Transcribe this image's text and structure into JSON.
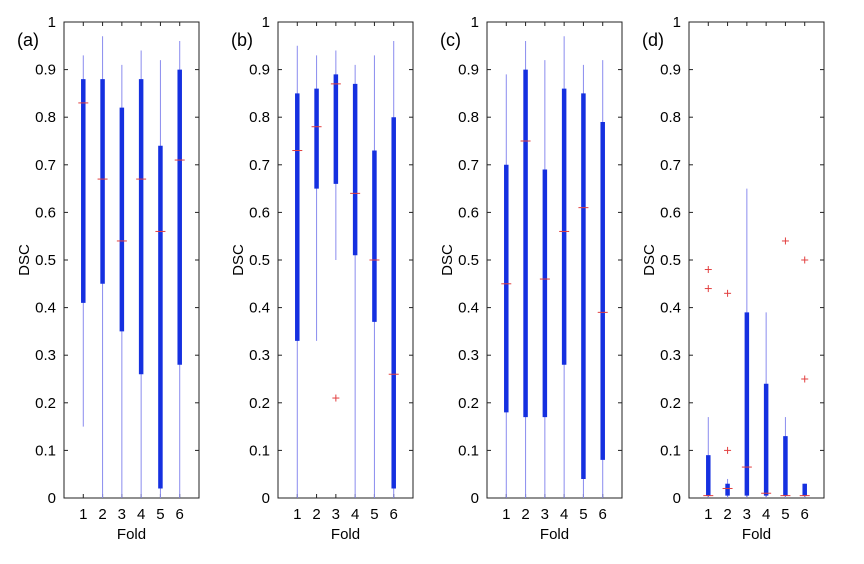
{
  "chart_data": [
    {
      "type": "boxplot",
      "panel_label": "(a)",
      "xlabel": "Fold",
      "ylabel": "DSC",
      "ylim": [
        0,
        1
      ],
      "yticks": [
        0,
        0.1,
        0.2,
        0.3,
        0.4,
        0.5,
        0.6,
        0.7,
        0.8,
        0.9,
        1
      ],
      "categories": [
        "1",
        "2",
        "3",
        "4",
        "5",
        "6"
      ],
      "boxes": [
        {
          "fold": "1",
          "whisker_low": 0.15,
          "q1": 0.41,
          "median": 0.83,
          "q3": 0.88,
          "whisker_high": 0.93,
          "outliers": []
        },
        {
          "fold": "2",
          "whisker_low": 0.0,
          "q1": 0.45,
          "median": 0.67,
          "q3": 0.88,
          "whisker_high": 0.97,
          "outliers": []
        },
        {
          "fold": "3",
          "whisker_low": 0.0,
          "q1": 0.35,
          "median": 0.54,
          "q3": 0.82,
          "whisker_high": 0.91,
          "outliers": []
        },
        {
          "fold": "4",
          "whisker_low": 0.0,
          "q1": 0.26,
          "median": 0.67,
          "q3": 0.88,
          "whisker_high": 0.94,
          "outliers": []
        },
        {
          "fold": "5",
          "whisker_low": 0.0,
          "q1": 0.02,
          "median": 0.56,
          "q3": 0.74,
          "whisker_high": 0.92,
          "outliers": []
        },
        {
          "fold": "6",
          "whisker_low": 0.0,
          "q1": 0.28,
          "median": 0.71,
          "q3": 0.9,
          "whisker_high": 0.96,
          "outliers": []
        }
      ]
    },
    {
      "type": "boxplot",
      "panel_label": "(b)",
      "xlabel": "Fold",
      "ylabel": "DSC",
      "ylim": [
        0,
        1
      ],
      "yticks": [
        0,
        0.1,
        0.2,
        0.3,
        0.4,
        0.5,
        0.6,
        0.7,
        0.8,
        0.9,
        1
      ],
      "categories": [
        "1",
        "2",
        "3",
        "4",
        "5",
        "6"
      ],
      "boxes": [
        {
          "fold": "1",
          "whisker_low": 0.0,
          "q1": 0.33,
          "median": 0.73,
          "q3": 0.85,
          "whisker_high": 0.95,
          "outliers": []
        },
        {
          "fold": "2",
          "whisker_low": 0.33,
          "q1": 0.65,
          "median": 0.78,
          "q3": 0.86,
          "whisker_high": 0.93,
          "outliers": []
        },
        {
          "fold": "3",
          "whisker_low": 0.5,
          "q1": 0.66,
          "median": 0.87,
          "q3": 0.89,
          "whisker_high": 0.94,
          "outliers": [
            0.21
          ]
        },
        {
          "fold": "4",
          "whisker_low": 0.0,
          "q1": 0.51,
          "median": 0.64,
          "q3": 0.87,
          "whisker_high": 0.91,
          "outliers": []
        },
        {
          "fold": "5",
          "whisker_low": 0.0,
          "q1": 0.37,
          "median": 0.5,
          "q3": 0.73,
          "whisker_high": 0.93,
          "outliers": []
        },
        {
          "fold": "6",
          "whisker_low": 0.0,
          "q1": 0.02,
          "median": 0.26,
          "q3": 0.8,
          "whisker_high": 0.96,
          "outliers": []
        }
      ]
    },
    {
      "type": "boxplot",
      "panel_label": "(c)",
      "xlabel": "Fold",
      "ylabel": "DSC",
      "ylim": [
        0,
        1
      ],
      "yticks": [
        0,
        0.1,
        0.2,
        0.3,
        0.4,
        0.5,
        0.6,
        0.7,
        0.8,
        0.9,
        1
      ],
      "categories": [
        "1",
        "2",
        "3",
        "4",
        "5",
        "6"
      ],
      "boxes": [
        {
          "fold": "1",
          "whisker_low": 0.0,
          "q1": 0.18,
          "median": 0.45,
          "q3": 0.7,
          "whisker_high": 0.89,
          "outliers": []
        },
        {
          "fold": "2",
          "whisker_low": 0.0,
          "q1": 0.17,
          "median": 0.75,
          "q3": 0.9,
          "whisker_high": 0.96,
          "outliers": []
        },
        {
          "fold": "3",
          "whisker_low": 0.0,
          "q1": 0.17,
          "median": 0.46,
          "q3": 0.69,
          "whisker_high": 0.92,
          "outliers": []
        },
        {
          "fold": "4",
          "whisker_low": 0.0,
          "q1": 0.28,
          "median": 0.56,
          "q3": 0.86,
          "whisker_high": 0.97,
          "outliers": []
        },
        {
          "fold": "5",
          "whisker_low": 0.0,
          "q1": 0.04,
          "median": 0.61,
          "q3": 0.85,
          "whisker_high": 0.91,
          "outliers": []
        },
        {
          "fold": "6",
          "whisker_low": 0.0,
          "q1": 0.08,
          "median": 0.39,
          "q3": 0.79,
          "whisker_high": 0.92,
          "outliers": []
        }
      ]
    },
    {
      "type": "boxplot",
      "panel_label": "(d)",
      "xlabel": "Fold",
      "ylabel": "DSC",
      "ylim": [
        0,
        1
      ],
      "yticks": [
        0,
        0.1,
        0.2,
        0.3,
        0.4,
        0.5,
        0.6,
        0.7,
        0.8,
        0.9,
        1
      ],
      "categories": [
        "1",
        "2",
        "3",
        "4",
        "5",
        "6"
      ],
      "boxes": [
        {
          "fold": "1",
          "whisker_low": 0.0,
          "q1": 0.005,
          "median": 0.005,
          "q3": 0.09,
          "whisker_high": 0.17,
          "outliers": [
            0.44,
            0.48
          ]
        },
        {
          "fold": "2",
          "whisker_low": 0.0,
          "q1": 0.005,
          "median": 0.02,
          "q3": 0.03,
          "whisker_high": 0.04,
          "outliers": [
            0.1,
            0.43
          ]
        },
        {
          "fold": "3",
          "whisker_low": 0.0,
          "q1": 0.005,
          "median": 0.065,
          "q3": 0.39,
          "whisker_high": 0.65,
          "outliers": []
        },
        {
          "fold": "4",
          "whisker_low": 0.0,
          "q1": 0.005,
          "median": 0.01,
          "q3": 0.24,
          "whisker_high": 0.39,
          "outliers": []
        },
        {
          "fold": "5",
          "whisker_low": 0.0,
          "q1": 0.005,
          "median": 0.005,
          "q3": 0.13,
          "whisker_high": 0.17,
          "outliers": [
            0.54
          ]
        },
        {
          "fold": "6",
          "whisker_low": 0.0,
          "q1": 0.005,
          "median": 0.005,
          "q3": 0.03,
          "whisker_high": 0.03,
          "outliers": [
            0.25,
            0.5
          ]
        }
      ]
    }
  ],
  "colors": {
    "box": "#1530e0",
    "whisker": "#8a8cee",
    "median": "#e24040",
    "outlier": "#e24040",
    "axis": "#222222"
  }
}
